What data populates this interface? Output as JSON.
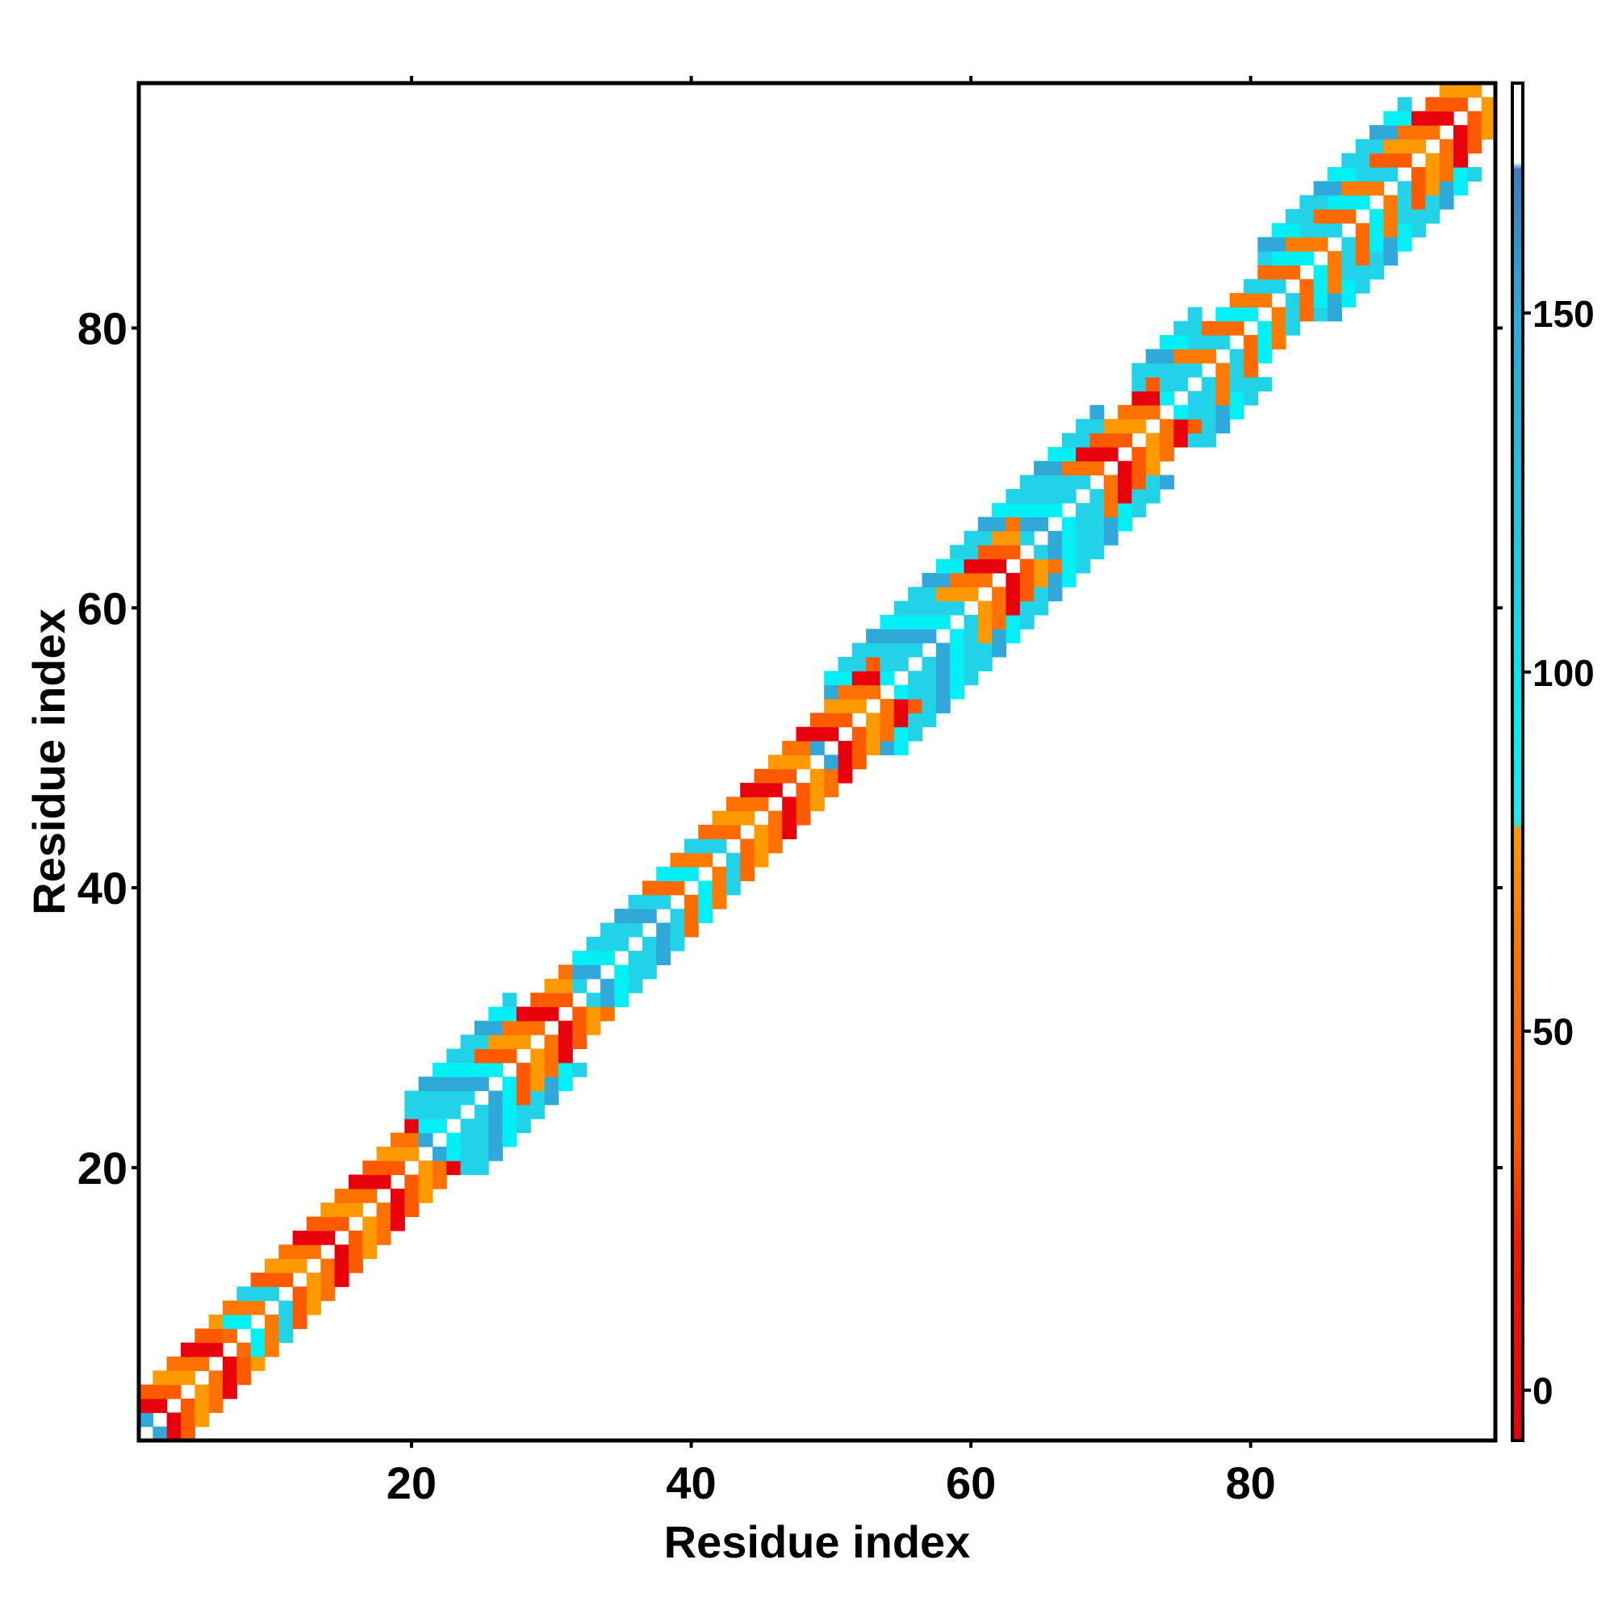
{
  "chart_data": {
    "type": "heatmap",
    "title": "",
    "xlabel": "Residue index",
    "ylabel": "Residue index",
    "x_range": [
      0.5,
      97.5
    ],
    "y_range": [
      0.5,
      97.5
    ],
    "x_ticks": [
      20,
      40,
      60,
      80
    ],
    "y_ticks": [
      20,
      40,
      60,
      80
    ],
    "x_tick_labels": [
      "20",
      "40",
      "60",
      "80"
    ],
    "y_tick_labels": [
      "20",
      "40",
      "60",
      "80"
    ],
    "colorbar": {
      "range": [
        -7,
        182
      ],
      "ticks": [
        0,
        50,
        100,
        150
      ],
      "tick_labels": [
        "0",
        "50",
        "100",
        "150"
      ],
      "gradient": [
        {
          "value": -7,
          "color": "#e8000d"
        },
        {
          "value": 20,
          "color": "#f11a00"
        },
        {
          "value": 35,
          "color": "#ff5a00"
        },
        {
          "value": 60,
          "color": "#ff7200"
        },
        {
          "value": 78,
          "color": "#ff9900"
        },
        {
          "value": 79,
          "color": "#22e8ee"
        },
        {
          "value": 92,
          "color": "#00f0f5"
        },
        {
          "value": 120,
          "color": "#20c8e0"
        },
        {
          "value": 150,
          "color": "#30a8d8"
        },
        {
          "value": 170,
          "color": "#3c7cbc"
        },
        {
          "value": 171,
          "color": "#ffffff"
        },
        {
          "value": 182,
          "color": "#ffffff"
        }
      ]
    },
    "grid": false,
    "legend": "colorbar-right",
    "contact_band": {
      "min_offset": 1,
      "max_offset": 3,
      "wide_band_residues": [
        [
          20,
          27
        ],
        [
          50,
          69
        ],
        [
          72,
          76
        ],
        [
          81,
          91
        ]
      ],
      "wide_band_max_offset": 5
    },
    "segments": [
      {
        "start": 1,
        "end": 2,
        "class": "helix"
      },
      {
        "start": 3,
        "end": 6,
        "class": "coil"
      },
      {
        "start": 7,
        "end": 11,
        "class": "mixed"
      },
      {
        "start": 12,
        "end": 20,
        "class": "coil"
      },
      {
        "start": 21,
        "end": 27,
        "class": "helix"
      },
      {
        "start": 28,
        "end": 31,
        "class": "coil"
      },
      {
        "start": 32,
        "end": 38,
        "class": "helix"
      },
      {
        "start": 39,
        "end": 44,
        "class": "mixed"
      },
      {
        "start": 45,
        "end": 48,
        "class": "coil"
      },
      {
        "start": 49,
        "end": 50,
        "class": "helix"
      },
      {
        "start": 51,
        "end": 53,
        "class": "coil"
      },
      {
        "start": 54,
        "end": 60,
        "class": "helix"
      },
      {
        "start": 61,
        "end": 63,
        "class": "coil"
      },
      {
        "start": 64,
        "end": 69,
        "class": "helix"
      },
      {
        "start": 70,
        "end": 73,
        "class": "coil"
      },
      {
        "start": 74,
        "end": 77,
        "class": "helix"
      },
      {
        "start": 78,
        "end": 82,
        "class": "mixed"
      },
      {
        "start": 83,
        "end": 91,
        "class": "mixed"
      },
      {
        "start": 92,
        "end": 97,
        "class": "coil"
      }
    ],
    "class_colors": {
      "coil": [
        "#ff5a00",
        "#e8000d",
        "#ff7200",
        "#ff9900"
      ],
      "helix": [
        "#22d3e8",
        "#00f0f5",
        "#30a8d8",
        "#22d3e8"
      ],
      "mixed": [
        "#ff6a00",
        "#22d3e8",
        "#ff7a00",
        "#00f0f5"
      ]
    }
  }
}
